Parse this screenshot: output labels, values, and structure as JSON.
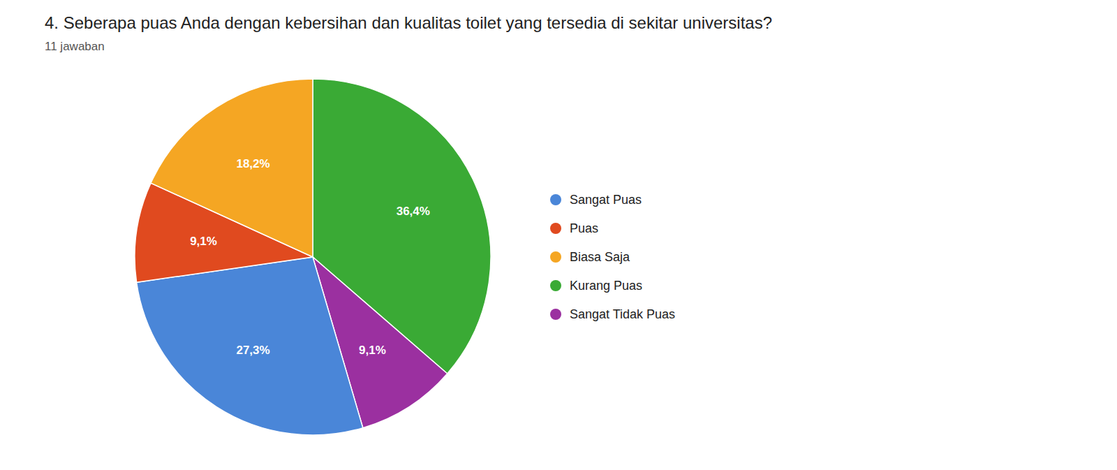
{
  "chart_data": {
    "type": "pie",
    "title": "4.  Seberapa puas Anda dengan kebersihan dan kualitas toilet yang tersedia di sekitar universitas?",
    "subtitle": "11 jawaban",
    "categories": [
      "Kurang Puas",
      "Sangat Tidak Puas",
      "Sangat Puas",
      "Puas",
      "Biasa Saja"
    ],
    "values": [
      36.4,
      9.1,
      27.3,
      9.1,
      18.2
    ],
    "value_labels": [
      "36,4%",
      "9,1%",
      "27,3%",
      "9,1%",
      "18,2%"
    ],
    "colors": [
      "#3aaa35",
      "#9b30a0",
      "#4a86d8",
      "#e04a1f",
      "#f5a623"
    ],
    "data_labels": true,
    "legend": "right",
    "legend_order": [
      "Sangat Puas",
      "Puas",
      "Biasa Saja",
      "Kurang Puas",
      "Sangat Tidak Puas"
    ]
  }
}
